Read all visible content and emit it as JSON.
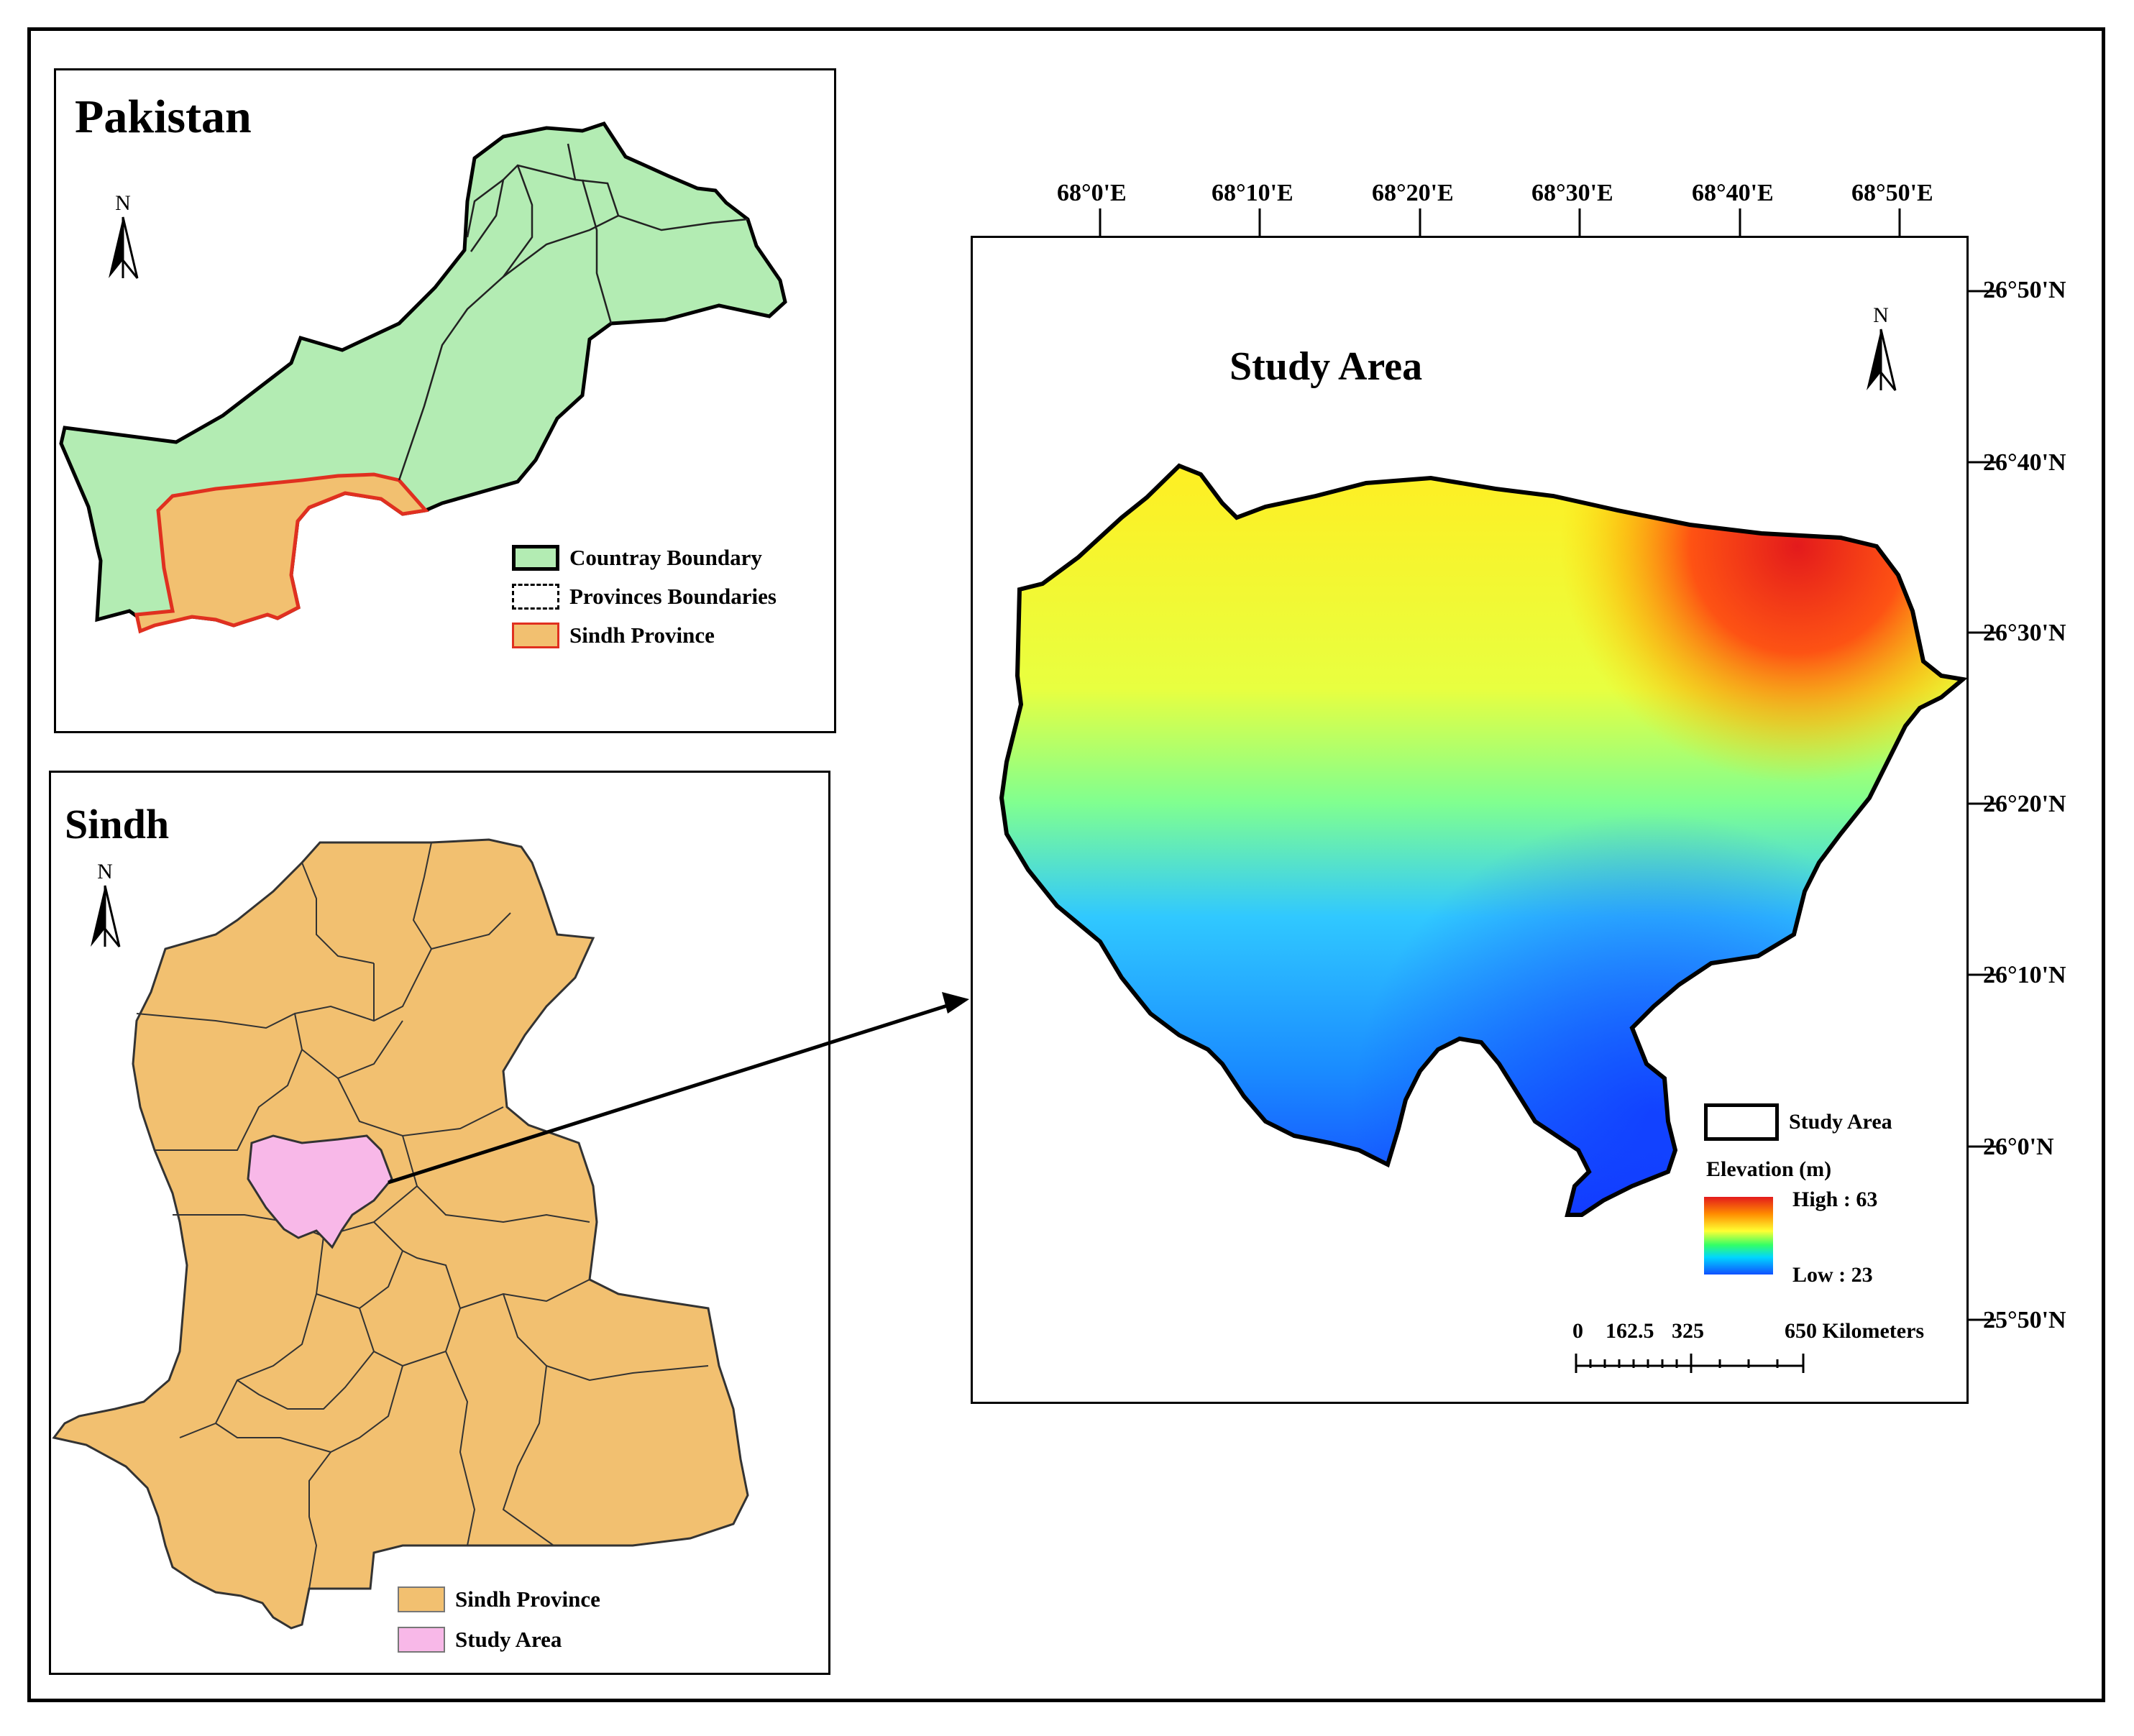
{
  "pakistan_panel": {
    "title": "Pakistan",
    "north_label": "N",
    "legend": [
      {
        "label": "Countray Boundary",
        "style": "fill",
        "fill": "#b3ecb3",
        "stroke": "#000000"
      },
      {
        "label": "Provinces Boundaries",
        "style": "dashed",
        "fill": "#ffffff",
        "stroke": "#000000"
      },
      {
        "label": "Sindh Province",
        "style": "fill",
        "fill": "#f2c070",
        "stroke": "#e03020"
      }
    ]
  },
  "sindh_panel": {
    "title": "Sindh",
    "north_label": "N",
    "legend": [
      {
        "label": "Sindh Province",
        "fill": "#f2c070"
      },
      {
        "label": "Study Area",
        "fill": "#f8b8e8"
      }
    ]
  },
  "study_panel": {
    "title": "Study Area",
    "north_label": "N",
    "longitude_labels": [
      "68°0'E",
      "68°10'E",
      "68°20'E",
      "68°30'E",
      "68°40'E",
      "68°50'E"
    ],
    "latitude_labels": [
      "26°50'N",
      "26°40'N",
      "26°30'N",
      "26°20'N",
      "26°10'N",
      "26°0'N",
      "25°50'N"
    ],
    "legend": {
      "study_area_label": "Study Area",
      "elevation_title": "Elevation (m)",
      "high_label": "High : 63",
      "low_label": "Low : 23"
    },
    "scale_bar": {
      "labels": [
        "0",
        "162.5",
        "325",
        "650 Kilometers"
      ]
    }
  },
  "colors": {
    "pakistan_fill": "#b3ecb3",
    "sindh_fill": "#f2c070",
    "sindh_outline": "#e03020",
    "study_area_fill": "#f8b8e8",
    "elevation_high": "#e31a1c",
    "elevation_low": "#1050ff"
  }
}
